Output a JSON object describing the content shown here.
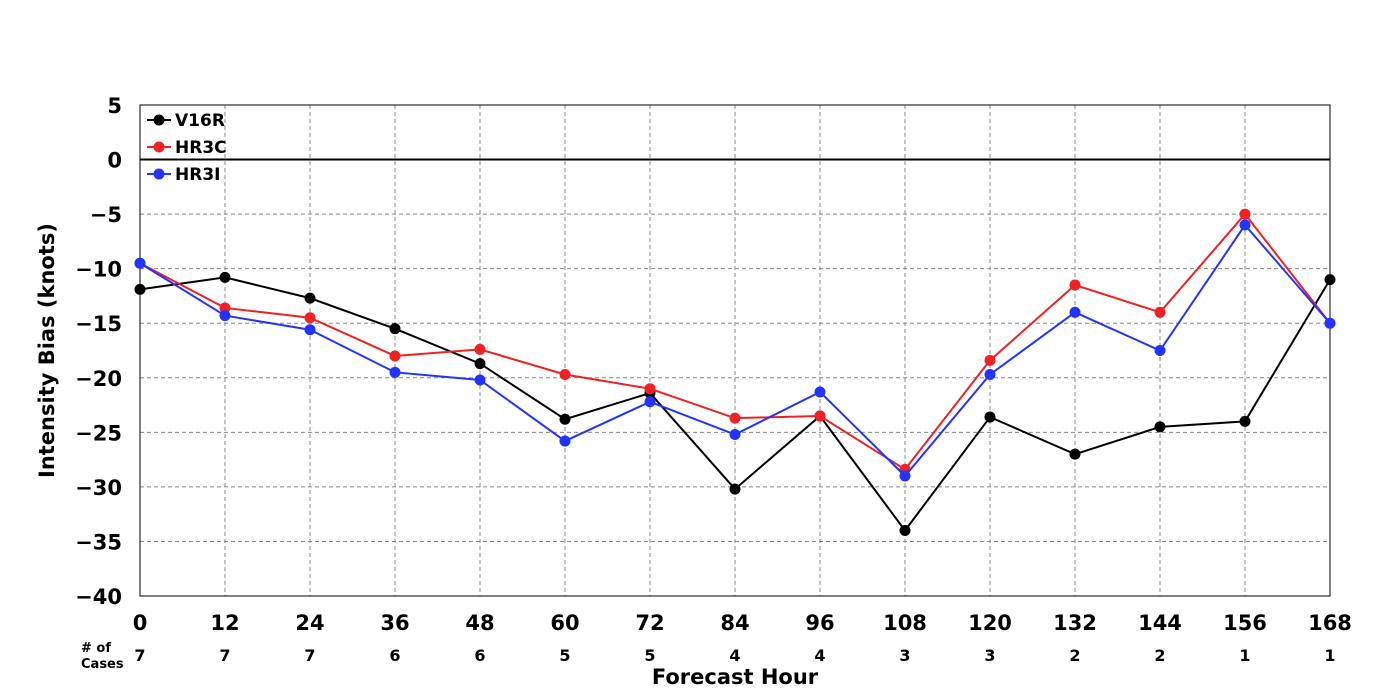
{
  "chart_data": {
    "type": "line",
    "title": "",
    "xlabel": "Forecast Hour",
    "ylabel": "Intensity Bias (knots)",
    "x": [
      0,
      12,
      24,
      36,
      48,
      60,
      72,
      84,
      96,
      108,
      120,
      132,
      144,
      156,
      168
    ],
    "xlim": [
      0,
      168
    ],
    "ylim": [
      -40,
      5
    ],
    "yticks": [
      5,
      0,
      -5,
      -10,
      -15,
      -20,
      -25,
      -30,
      -35,
      -40
    ],
    "grid": true,
    "legend_position": "top-left",
    "cases_label": [
      "# of",
      "Cases"
    ],
    "cases": [
      7,
      7,
      7,
      6,
      6,
      5,
      5,
      4,
      4,
      3,
      3,
      2,
      2,
      1,
      1
    ],
    "series": [
      {
        "name": "V16R",
        "color": "#000000",
        "values": [
          -11.9,
          -10.8,
          -12.7,
          -15.5,
          -18.7,
          -23.8,
          -21.4,
          -30.2,
          -23.5,
          -34.0,
          -23.6,
          -27.0,
          -24.5,
          -24.0,
          -11.0
        ]
      },
      {
        "name": "HR3C",
        "color": "#ee2222",
        "values": [
          -9.5,
          -13.6,
          -14.5,
          -18.0,
          -17.4,
          -19.7,
          -21.0,
          -23.7,
          -23.5,
          -28.4,
          -18.4,
          -11.5,
          -14.0,
          -5.0,
          -15.0
        ]
      },
      {
        "name": "HR3I",
        "color": "#2233ff",
        "values": [
          -9.5,
          -14.3,
          -15.6,
          -19.5,
          -20.2,
          -25.8,
          -22.2,
          -25.2,
          -21.3,
          -29.0,
          -19.7,
          -14.0,
          -17.5,
          -6.0,
          -15.0
        ]
      }
    ]
  }
}
